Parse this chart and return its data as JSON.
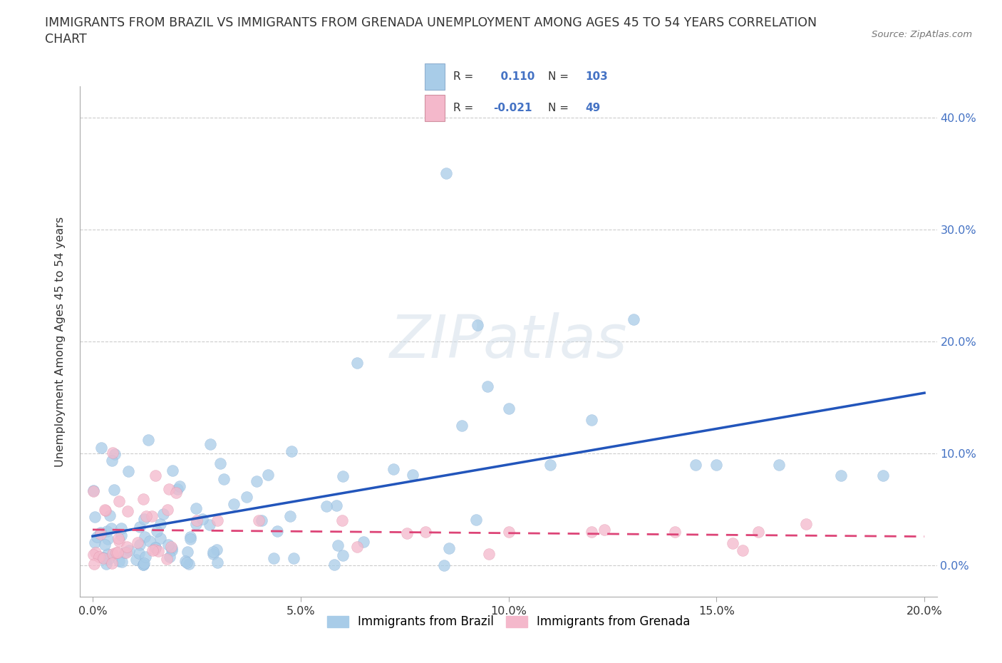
{
  "title_line1": "IMMIGRANTS FROM BRAZIL VS IMMIGRANTS FROM GRENADA UNEMPLOYMENT AMONG AGES 45 TO 54 YEARS CORRELATION",
  "title_line2": "CHART",
  "source_text": "Source: ZipAtlas.com",
  "ylabel": "Unemployment Among Ages 45 to 54 years",
  "xlabel_brazil": "Immigrants from Brazil",
  "xlabel_grenada": "Immigrants from Grenada",
  "color_brazil": "#a8cce8",
  "color_grenada": "#f4b8cb",
  "line_brazil": "#2255bb",
  "line_grenada": "#dd4477",
  "R_brazil": 0.11,
  "N_brazil": 103,
  "R_grenada": -0.021,
  "N_grenada": 49,
  "watermark": "ZIPatlas",
  "ytick_color": "#4472c4",
  "text_color": "#333333"
}
